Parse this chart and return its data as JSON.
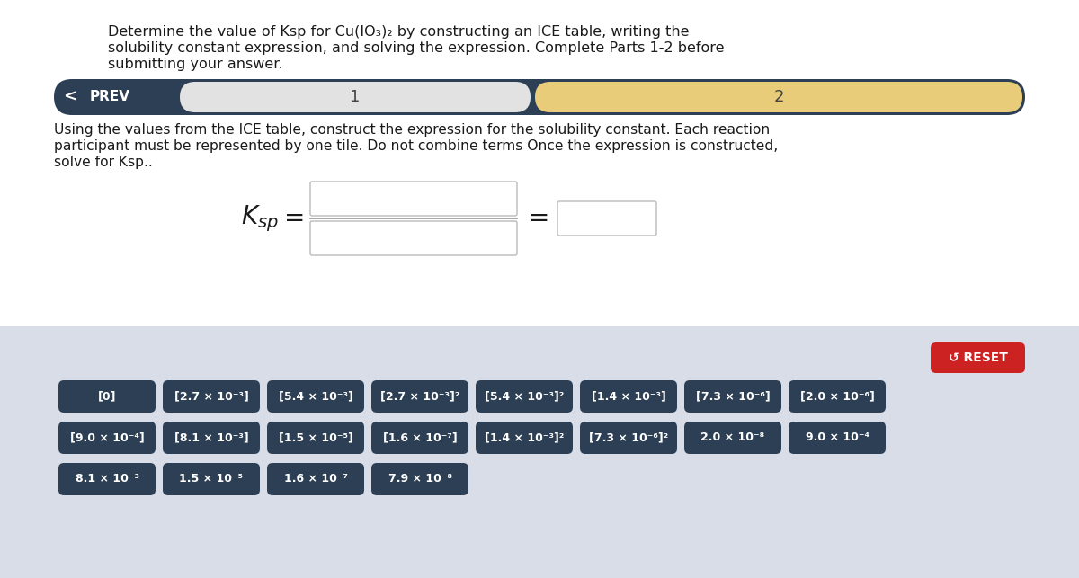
{
  "title_line1": "Determine the value of Ksp for Cu(IO₃)₂ by constructing an ICE table, writing the",
  "title_line2": "solubility constant expression, and solving the expression. Complete Parts 1-2 before",
  "title_line3": "submitting your answer.",
  "nav_bg": "#2d3f54",
  "nav_prev_text": "PREV",
  "nav_tab1_text": "1",
  "nav_tab2_text": "2",
  "nav_tab1_bg": "#e2e2e2",
  "nav_tab2_bg": "#e8cc7a",
  "instruction_text1": "Using the values from the ICE table, construct the expression for the solubility constant. Each reaction",
  "instruction_text2": "participant must be represented by one tile. Do not combine terms Once the expression is constructed,",
  "instruction_text3": "solve for Ksp..",
  "bottom_bg": "#d8dde8",
  "reset_bg": "#cc2222",
  "reset_text": "↺ RESET",
  "tile_bg": "#2d3f54",
  "tile_text_color": "#ffffff",
  "row1_tiles": [
    "[0]",
    "[2.7 × 10⁻³]",
    "[5.4 × 10⁻³]",
    "[2.7 × 10⁻³]²",
    "[5.4 × 10⁻³]²",
    "[1.4 × 10⁻³]",
    "[7.3 × 10⁻⁶]",
    "[2.0 × 10⁻⁶]"
  ],
  "row2_tiles": [
    "[9.0 × 10⁻⁴]",
    "[8.1 × 10⁻³]",
    "[1.5 × 10⁻⁵]",
    "[1.6 × 10⁻⁷]",
    "[1.4 × 10⁻³]²",
    "[7.3 × 10⁻⁶]²",
    "2.0 × 10⁻⁸",
    "9.0 × 10⁻⁴"
  ],
  "row3_tiles": [
    "8.1 × 10⁻³",
    "1.5 × 10⁻⁵",
    "1.6 × 10⁻⁷",
    "7.9 × 10⁻⁸"
  ],
  "main_bg": "#ffffff",
  "text_color": "#1a1a1a"
}
